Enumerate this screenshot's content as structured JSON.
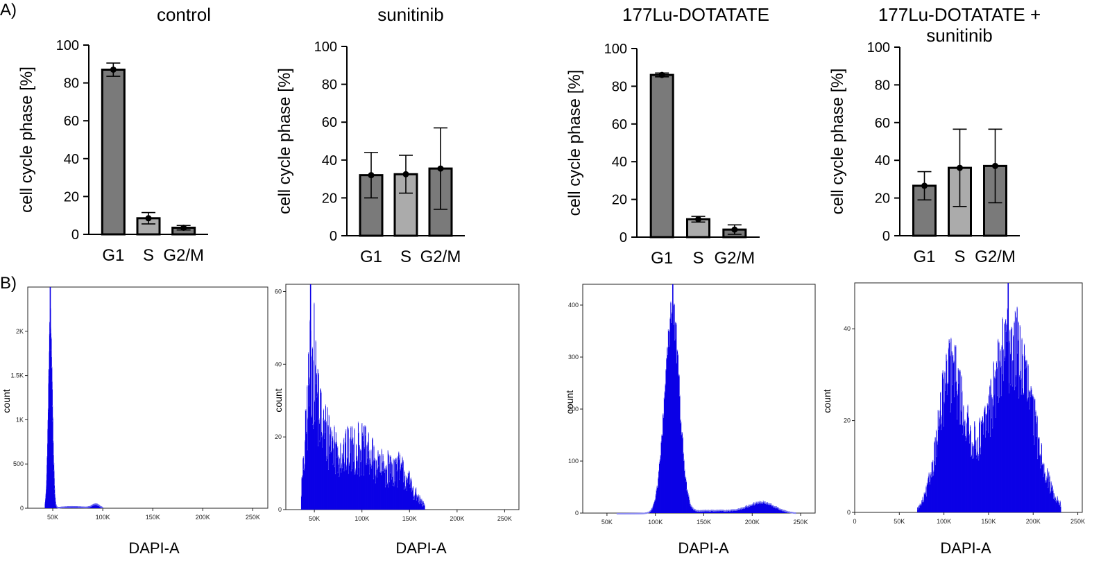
{
  "panel_labels": {
    "a": "A)",
    "b": "B)"
  },
  "colors": {
    "bar_dark": "#7a7a7a",
    "bar_light": "#ababab",
    "hist_fill": "#0b00e6",
    "hist_edge": "#8c8cf2"
  },
  "chart_data": [
    {
      "id": "bar-control",
      "type": "bar",
      "title_lines": [
        "control"
      ],
      "ylabel": "cell cycle phase [%]",
      "categories": [
        "G1",
        "S",
        "G2/M"
      ],
      "values": [
        87,
        8.5,
        3.5
      ],
      "error": [
        3.5,
        3,
        1.2
      ],
      "yticks": [
        "0",
        "20",
        "40",
        "60",
        "80",
        "100"
      ],
      "ylim": [
        0,
        100
      ]
    },
    {
      "id": "bar-sunitinib",
      "type": "bar",
      "title_lines": [
        "sunitinib"
      ],
      "ylabel": "cell cycle phase [%]",
      "categories": [
        "G1",
        "S",
        "G2/M"
      ],
      "values": [
        32,
        32.5,
        35.5
      ],
      "error": [
        12,
        10,
        21.5
      ],
      "yticks": [
        "0",
        "20",
        "40",
        "60",
        "80",
        "100"
      ],
      "ylim": [
        0,
        100
      ]
    },
    {
      "id": "bar-lu",
      "type": "bar",
      "title_lines": [
        "177Lu-DOTATATE"
      ],
      "ylabel": "cell cycle phase [%]",
      "categories": [
        "G1",
        "S",
        "G2/M"
      ],
      "values": [
        86,
        9.5,
        4
      ],
      "error": [
        1,
        1.5,
        2.5
      ],
      "yticks": [
        "0",
        "20",
        "40",
        "60",
        "80",
        "100"
      ],
      "ylim": [
        0,
        100
      ]
    },
    {
      "id": "bar-lu-sunitinib",
      "type": "bar",
      "title_lines": [
        "177Lu-DOTATATE +",
        "sunitinib"
      ],
      "ylabel": "cell cycle phase [%]",
      "categories": [
        "G1",
        "S",
        "G2/M"
      ],
      "values": [
        26.5,
        36,
        37
      ],
      "error": [
        7.5,
        20.5,
        19.5
      ],
      "yticks": [
        "0",
        "20",
        "40",
        "60",
        "80",
        "100"
      ],
      "ylim": [
        0,
        100
      ]
    },
    {
      "id": "hist-control",
      "type": "histogram",
      "xlabel": "DAPI-A",
      "ylabel": "count",
      "xlim": [
        25000,
        265000
      ],
      "ylim": [
        0,
        2500
      ],
      "xticks": [
        {
          "v": 50000,
          "t": "50K"
        },
        {
          "v": 100000,
          "t": "100K"
        },
        {
          "v": 150000,
          "t": "150K"
        },
        {
          "v": 200000,
          "t": "200K"
        },
        {
          "v": 250000,
          "t": "250K"
        }
      ],
      "yticks": [
        {
          "v": 0,
          "t": "0"
        },
        {
          "v": 500,
          "t": "500"
        },
        {
          "v": 1000,
          "t": "1K"
        },
        {
          "v": 1500,
          "t": "1.5K"
        },
        {
          "v": 2000,
          "t": "2K"
        }
      ],
      "components": [
        {
          "mu": 47500,
          "sd": 2000,
          "h": 2100
        },
        {
          "mu": 93000,
          "sd": 4000,
          "h": 45
        },
        {
          "mu": 70000,
          "sd": 14000,
          "h": 22
        }
      ],
      "peak": {
        "x": 47500,
        "y": 2500
      },
      "range": [
        42000,
        100000
      ],
      "noise": 0.1,
      "bins": 300
    },
    {
      "id": "hist-sunitinib",
      "type": "histogram",
      "xlabel": "DAPI-A",
      "ylabel": "count",
      "xlim": [
        20000,
        265000
      ],
      "ylim": [
        0,
        62
      ],
      "xticks": [
        {
          "v": 50000,
          "t": "50K"
        },
        {
          "v": 100000,
          "t": "100K"
        },
        {
          "v": 150000,
          "t": "150K"
        },
        {
          "v": 200000,
          "t": "200K"
        },
        {
          "v": 250000,
          "t": "250K"
        }
      ],
      "yticks": [
        {
          "v": 0,
          "t": "0"
        },
        {
          "v": 20,
          "t": "20"
        },
        {
          "v": 40,
          "t": "40"
        },
        {
          "v": 60,
          "t": "60"
        }
      ],
      "components": [
        {
          "mu": 47000,
          "sd": 5500,
          "h": 32
        },
        {
          "mu": 60000,
          "sd": 10000,
          "h": 15
        },
        {
          "mu": 95000,
          "sd": 22000,
          "h": 17
        },
        {
          "mu": 140000,
          "sd": 13000,
          "h": 9
        }
      ],
      "peak": {
        "x": 46000,
        "y": 62
      },
      "range": [
        36000,
        166000
      ],
      "noise": 0.45,
      "bins": 300
    },
    {
      "id": "hist-lu",
      "type": "histogram",
      "xlabel": "DAPI-A",
      "ylabel": "count",
      "xlim": [
        25000,
        265000
      ],
      "ylim": [
        0,
        440
      ],
      "xticks": [
        {
          "v": 50000,
          "t": "50K"
        },
        {
          "v": 100000,
          "t": "100K"
        },
        {
          "v": 150000,
          "t": "150K"
        },
        {
          "v": 200000,
          "t": "200K"
        },
        {
          "v": 250000,
          "t": "250K"
        }
      ],
      "yticks": [
        {
          "v": 0,
          "t": "0"
        },
        {
          "v": 100,
          "t": "100"
        },
        {
          "v": 200,
          "t": "200"
        },
        {
          "v": 300,
          "t": "300"
        },
        {
          "v": 400,
          "t": "400"
        }
      ],
      "components": [
        {
          "mu": 117000,
          "sd": 7500,
          "h": 385
        },
        {
          "mu": 210000,
          "sd": 14000,
          "h": 20
        },
        {
          "mu": 160000,
          "sd": 30000,
          "h": 6
        }
      ],
      "peak": {
        "x": 118000,
        "y": 440
      },
      "range": [
        60000,
        245000
      ],
      "noise": 0.12,
      "bins": 300
    },
    {
      "id": "hist-lu-sunitinib",
      "type": "histogram",
      "xlabel": "DAPI-A",
      "ylabel": "count",
      "xlim": [
        0,
        255000
      ],
      "ylim": [
        0,
        50
      ],
      "xticks": [
        {
          "v": 0,
          "t": "0"
        },
        {
          "v": 50000,
          "t": "50K"
        },
        {
          "v": 100000,
          "t": "100K"
        },
        {
          "v": 150000,
          "t": "150K"
        },
        {
          "v": 200000,
          "t": "200K"
        },
        {
          "v": 250000,
          "t": "250K"
        }
      ],
      "yticks": [
        {
          "v": 0,
          "t": "0"
        },
        {
          "v": 20,
          "t": "20"
        },
        {
          "v": 40,
          "t": "40"
        }
      ],
      "components": [
        {
          "mu": 107000,
          "sd": 14000,
          "h": 27
        },
        {
          "mu": 178000,
          "sd": 22000,
          "h": 34
        },
        {
          "mu": 140000,
          "sd": 25000,
          "h": 7
        }
      ],
      "peak": {
        "x": 172000,
        "y": 50
      },
      "range": [
        70000,
        231000
      ],
      "noise": 0.28,
      "bins": 300
    }
  ]
}
